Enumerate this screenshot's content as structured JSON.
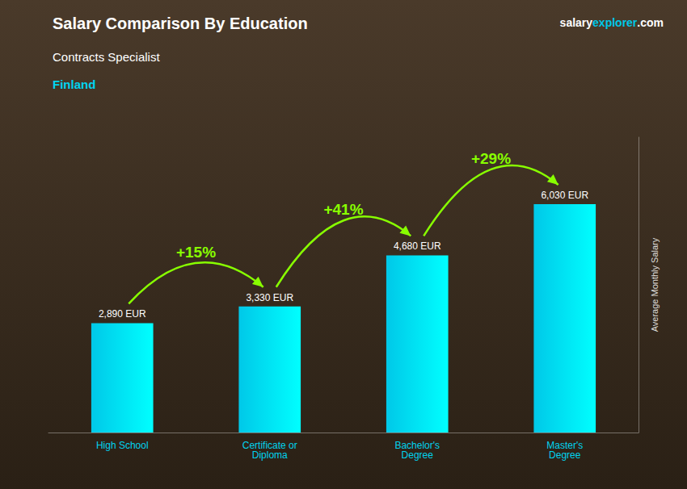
{
  "chart_data": {
    "type": "bar",
    "title": "Salary Comparison By Education",
    "subtitle": [
      "Contracts Specialist",
      "Finland"
    ],
    "source": [
      "salary",
      "explorer",
      ".com"
    ],
    "categories": [
      "High School",
      "Certificate or\nDiploma",
      "Bachelor's\nDegree",
      "Master's\nDegree"
    ],
    "values": [
      2890,
      3330,
      4680,
      6030
    ],
    "value_labels": [
      "2,890 EUR",
      "3,330 EUR",
      "4,680 EUR",
      "6,030 EUR"
    ],
    "data_labels": true,
    "annotations": [
      "+15%",
      "+41%",
      "+29%"
    ],
    "ylabel": "Average Monthly Salary",
    "color": "#00c8e8",
    "ylim": [
      0,
      7800
    ],
    "tick_labels": "x",
    "grid": false
  }
}
